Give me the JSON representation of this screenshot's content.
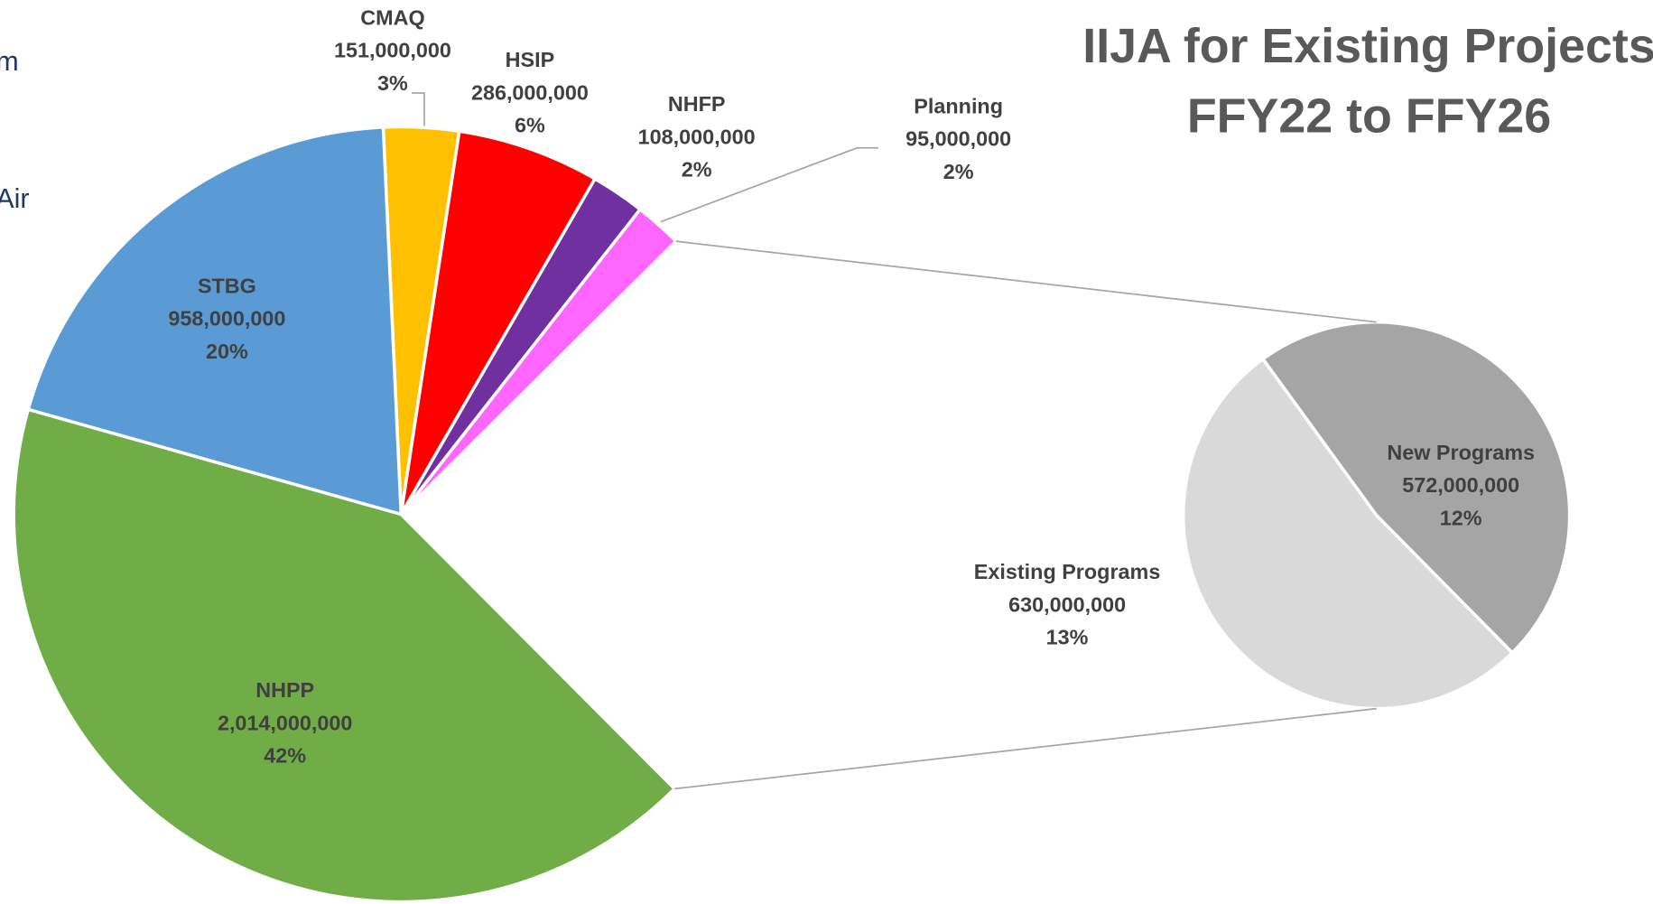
{
  "chart_data": {
    "type": "pie_of_pie",
    "title": [
      "IIJA for Existing Projects",
      "FFY22 to FFY26"
    ],
    "fragments": [
      "m",
      "Air"
    ],
    "main": {
      "categories": [
        "CMAQ",
        "HSIP",
        "NHFP",
        "Planning",
        null,
        "NHPP",
        "STBG"
      ],
      "values": [
        151000000,
        286000000,
        108000000,
        95000000,
        1202000000,
        2014000000,
        958000000
      ],
      "value_labels": [
        "151,000,000",
        "286,000,000",
        "108,000,000",
        "95,000,000",
        null,
        "2,014,000,000",
        "958,000,000"
      ],
      "percentages": [
        3,
        6,
        2,
        2,
        null,
        42,
        20
      ],
      "percentage_labels": [
        "3%",
        "6%",
        "2%",
        "2%",
        null,
        "42%",
        "20%"
      ],
      "colors": [
        "#ffc000",
        "#ff0000",
        "#7030a0",
        "#ff66ff",
        "#ffffff",
        "#70ad47",
        "#5b9bd5"
      ]
    },
    "secondary": {
      "categories": [
        "New Programs",
        "Existing Programs"
      ],
      "values": [
        572000000,
        630000000
      ],
      "value_labels": [
        "572,000,000",
        "630,000,000"
      ],
      "percentages": [
        12,
        13
      ],
      "percentage_labels": [
        "12%",
        "13%"
      ],
      "colors": [
        "#a5a5a5",
        "#d9d9d9"
      ]
    }
  }
}
